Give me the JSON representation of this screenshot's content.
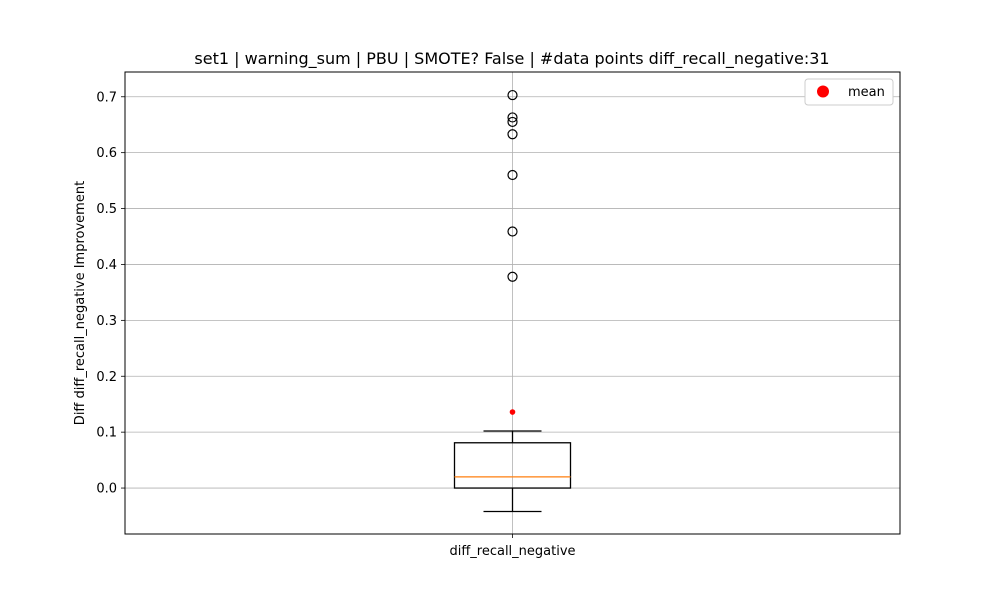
{
  "chart_data": {
    "type": "box",
    "title": "set1 | warning_sum | PBU | SMOTE? False | #data points diff_recall_negative:31",
    "xlabel": "",
    "ylabel": "Diff diff_recall_negative Improvement",
    "categories": [
      "diff_recall_negative"
    ],
    "ylim": [
      -0.0822,
      0.7443
    ],
    "yticks": [
      0.0,
      0.1,
      0.2,
      0.3,
      0.4,
      0.5,
      0.6,
      0.7
    ],
    "ytick_labels": [
      "0.0",
      "0.1",
      "0.2",
      "0.3",
      "0.4",
      "0.5",
      "0.6",
      "0.7"
    ],
    "grid": true,
    "box": {
      "whisker_low": -0.042,
      "q1": 0.0,
      "median": 0.02,
      "q3": 0.081,
      "whisker_high": 0.102,
      "mean": 0.136,
      "outliers": [
        0.378,
        0.459,
        0.56,
        0.633,
        0.655,
        0.663,
        0.703
      ]
    },
    "legend": {
      "position": "top-right",
      "entries": [
        "mean"
      ]
    },
    "colors": {
      "box": "#000000",
      "median": "#ff7f0e",
      "mean": "#ff0000",
      "grid": "#b0b0b0"
    }
  }
}
